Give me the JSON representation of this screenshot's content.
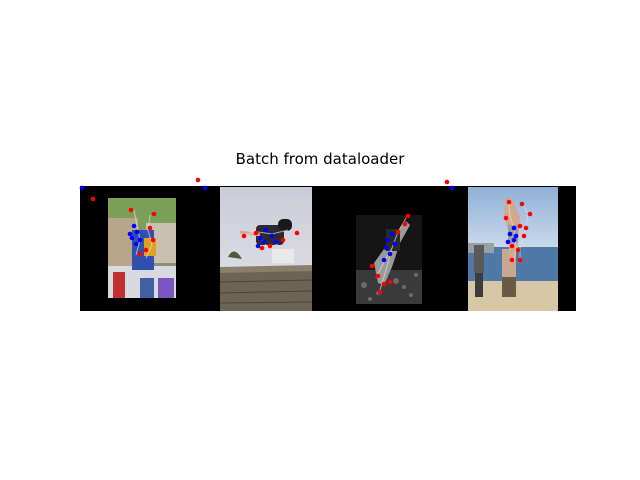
{
  "figure": {
    "title": "Batch from dataloader"
  },
  "colors": {
    "background": "#ffffff",
    "strip": "#000000",
    "left_keypoint": "#ff0000",
    "right_keypoint": "#0000ff"
  },
  "images": [
    {
      "name": "street-crowd-photo"
    },
    {
      "name": "wall-jump-photo"
    },
    {
      "name": "grayscale-jump-photo"
    },
    {
      "name": "beach-jump-photo"
    }
  ]
}
